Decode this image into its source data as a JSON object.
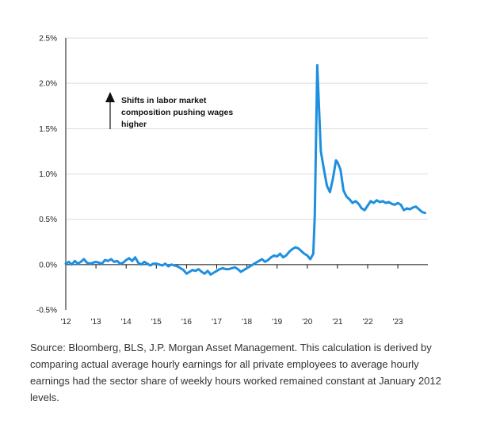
{
  "chart_data": {
    "type": "line",
    "title": "",
    "xlabel": "",
    "ylabel": "",
    "ylim": [
      -0.5,
      2.5
    ],
    "xlim": [
      2012,
      2023.9
    ],
    "y_ticks": [
      {
        "value": 2.5,
        "label": "2.5%"
      },
      {
        "value": 2.0,
        "label": "2.0%"
      },
      {
        "value": 1.5,
        "label": "1.5%"
      },
      {
        "value": 1.0,
        "label": "1.0%"
      },
      {
        "value": 0.5,
        "label": "0.5%"
      },
      {
        "value": 0.0,
        "label": "0.0%"
      },
      {
        "value": -0.5,
        "label": "-0.5%"
      }
    ],
    "x_ticks": [
      {
        "value": 2012,
        "label": "'12"
      },
      {
        "value": 2013,
        "label": "'13"
      },
      {
        "value": 2014,
        "label": "'14"
      },
      {
        "value": 2015,
        "label": "'15"
      },
      {
        "value": 2016,
        "label": "'16"
      },
      {
        "value": 2017,
        "label": "'17"
      },
      {
        "value": 2018,
        "label": "'18"
      },
      {
        "value": 2019,
        "label": "'19"
      },
      {
        "value": 2020,
        "label": "'20"
      },
      {
        "value": 2021,
        "label": "'21"
      },
      {
        "value": 2022,
        "label": "'22"
      },
      {
        "value": 2023,
        "label": "'23"
      }
    ],
    "gridlines": true,
    "line_color": "#1e8fe0",
    "annotation": {
      "lines": [
        "Shifts in labor market",
        "composition pushing wages",
        "higher"
      ],
      "arrow": "up"
    },
    "series": [
      {
        "x": [
          2012.0,
          2012.1,
          2012.2,
          2012.3,
          2012.4,
          2012.5,
          2012.6,
          2012.7,
          2012.8,
          2012.9,
          2013.0,
          2013.1,
          2013.2,
          2013.3,
          2013.4,
          2013.5,
          2013.6,
          2013.7,
          2013.8,
          2013.9,
          2014.0,
          2014.1,
          2014.2,
          2014.3,
          2014.4,
          2014.5,
          2014.6,
          2014.7,
          2014.8,
          2014.9,
          2015.0,
          2015.1,
          2015.2,
          2015.3,
          2015.4,
          2015.5,
          2015.6,
          2015.7,
          2015.8,
          2015.9,
          2016.0,
          2016.1,
          2016.2,
          2016.3,
          2016.4,
          2016.5,
          2016.6,
          2016.7,
          2016.8,
          2016.9,
          2017.0,
          2017.1,
          2017.2,
          2017.3,
          2017.4,
          2017.5,
          2017.6,
          2017.7,
          2017.8,
          2017.9,
          2018.0,
          2018.1,
          2018.2,
          2018.3,
          2018.4,
          2018.5,
          2018.6,
          2018.7,
          2018.8,
          2018.9,
          2019.0,
          2019.1,
          2019.2,
          2019.3,
          2019.4,
          2019.5,
          2019.6,
          2019.7,
          2019.8,
          2019.9,
          2020.0,
          2020.1,
          2020.2,
          2020.25,
          2020.33,
          2020.45,
          2020.55,
          2020.65,
          2020.75,
          2020.85,
          2020.95,
          2021.0,
          2021.1,
          2021.2,
          2021.3,
          2021.4,
          2021.5,
          2021.6,
          2021.7,
          2021.8,
          2021.9,
          2022.0,
          2022.1,
          2022.2,
          2022.3,
          2022.4,
          2022.5,
          2022.6,
          2022.7,
          2022.8,
          2022.9,
          2023.0,
          2023.1,
          2023.2,
          2023.3,
          2023.4,
          2023.5,
          2023.6,
          2023.7,
          2023.8,
          2023.9
        ],
        "y": [
          0.01,
          0.03,
          0.0,
          0.04,
          0.01,
          0.03,
          0.06,
          0.02,
          0.01,
          0.02,
          0.03,
          0.02,
          0.01,
          0.05,
          0.04,
          0.06,
          0.03,
          0.04,
          0.01,
          0.02,
          0.05,
          0.07,
          0.04,
          0.08,
          0.02,
          0.0,
          0.03,
          0.01,
          -0.01,
          0.01,
          0.01,
          0.0,
          -0.01,
          0.01,
          -0.02,
          0.0,
          -0.01,
          -0.02,
          -0.04,
          -0.06,
          -0.1,
          -0.08,
          -0.06,
          -0.07,
          -0.05,
          -0.08,
          -0.1,
          -0.07,
          -0.11,
          -0.09,
          -0.07,
          -0.05,
          -0.04,
          -0.05,
          -0.05,
          -0.04,
          -0.03,
          -0.05,
          -0.08,
          -0.06,
          -0.04,
          -0.02,
          0.0,
          0.02,
          0.04,
          0.06,
          0.03,
          0.05,
          0.08,
          0.1,
          0.09,
          0.12,
          0.08,
          0.1,
          0.14,
          0.17,
          0.19,
          0.18,
          0.15,
          0.12,
          0.1,
          0.06,
          0.12,
          0.55,
          2.2,
          1.25,
          1.05,
          0.87,
          0.8,
          0.95,
          1.15,
          1.13,
          1.05,
          0.82,
          0.75,
          0.72,
          0.68,
          0.7,
          0.67,
          0.62,
          0.6,
          0.65,
          0.7,
          0.68,
          0.71,
          0.69,
          0.7,
          0.68,
          0.69,
          0.67,
          0.66,
          0.68,
          0.66,
          0.6,
          0.62,
          0.61,
          0.63,
          0.64,
          0.61,
          0.58,
          0.57
        ]
      }
    ]
  },
  "source_note": "Source: Bloomberg, BLS, J.P. Morgan Asset Management. This calculation is derived by comparing actual average hourly earnings for all private employees to average hourly earnings had the sector share of weekly hours worked remained constant at January 2012 levels."
}
